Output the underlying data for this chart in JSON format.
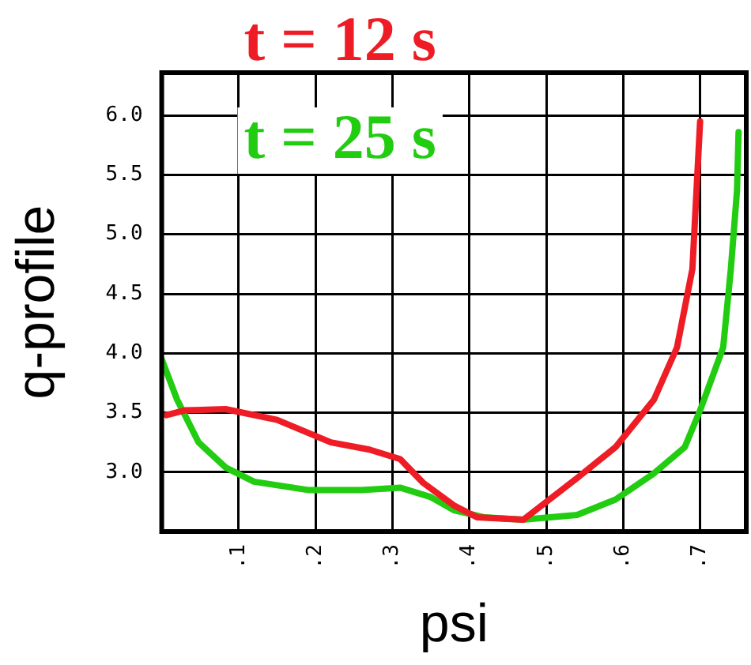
{
  "chart_data": {
    "type": "line",
    "xlabel": "psi",
    "ylabel": "q-profile",
    "xlim": [
      0,
      0.76
    ],
    "xticks": [
      {
        "value": 0.1,
        "label": ".1"
      },
      {
        "value": 0.2,
        "label": ".2"
      },
      {
        "value": 0.3,
        "label": ".3"
      },
      {
        "value": 0.4,
        "label": ".4"
      },
      {
        "value": 0.5,
        "label": ".5"
      },
      {
        "value": 0.6,
        "label": ".6"
      },
      {
        "value": 0.7,
        "label": ".7"
      }
    ],
    "ylim": [
      2.5,
      6.36
    ],
    "yticks": [
      {
        "value": 3,
        "label": "3.0"
      },
      {
        "value": 3.5,
        "label": "3.5"
      },
      {
        "value": 4,
        "label": "4.0"
      },
      {
        "value": 4.5,
        "label": "4.5"
      },
      {
        "value": 5,
        "label": "5.0"
      },
      {
        "value": 5.5,
        "label": "5.5"
      },
      {
        "value": 6,
        "label": "6.0"
      }
    ],
    "grid": true,
    "legend": "top left",
    "marker": "none",
    "line_style": "solid",
    "series": [
      {
        "name": "t = 12 s",
        "color": "#ee1c24",
        "x": [
          0.006,
          0.03,
          0.083,
          0.15,
          0.22,
          0.27,
          0.31,
          0.34,
          0.38,
          0.41,
          0.47,
          0.54,
          0.59,
          0.64,
          0.67,
          0.69,
          0.7
        ],
        "values": [
          3.48,
          3.52,
          3.53,
          3.44,
          3.25,
          3.19,
          3.11,
          2.91,
          2.72,
          2.62,
          2.6,
          2.95,
          3.21,
          3.61,
          4.05,
          4.71,
          5.95
        ]
      },
      {
        "name": "t = 25 s",
        "color": "#22cc11",
        "x": [
          0,
          0.02,
          0.048,
          0.083,
          0.12,
          0.19,
          0.26,
          0.31,
          0.35,
          0.38,
          0.42,
          0.47,
          0.54,
          0.59,
          0.64,
          0.68,
          0.7,
          0.73,
          0.74,
          0.748,
          0.75
        ],
        "values": [
          3.95,
          3.61,
          3.25,
          3.04,
          2.92,
          2.85,
          2.85,
          2.87,
          2.79,
          2.68,
          2.62,
          2.6,
          2.64,
          2.77,
          2.99,
          3.21,
          3.52,
          4.05,
          4.71,
          5.37,
          5.86
        ]
      }
    ]
  }
}
